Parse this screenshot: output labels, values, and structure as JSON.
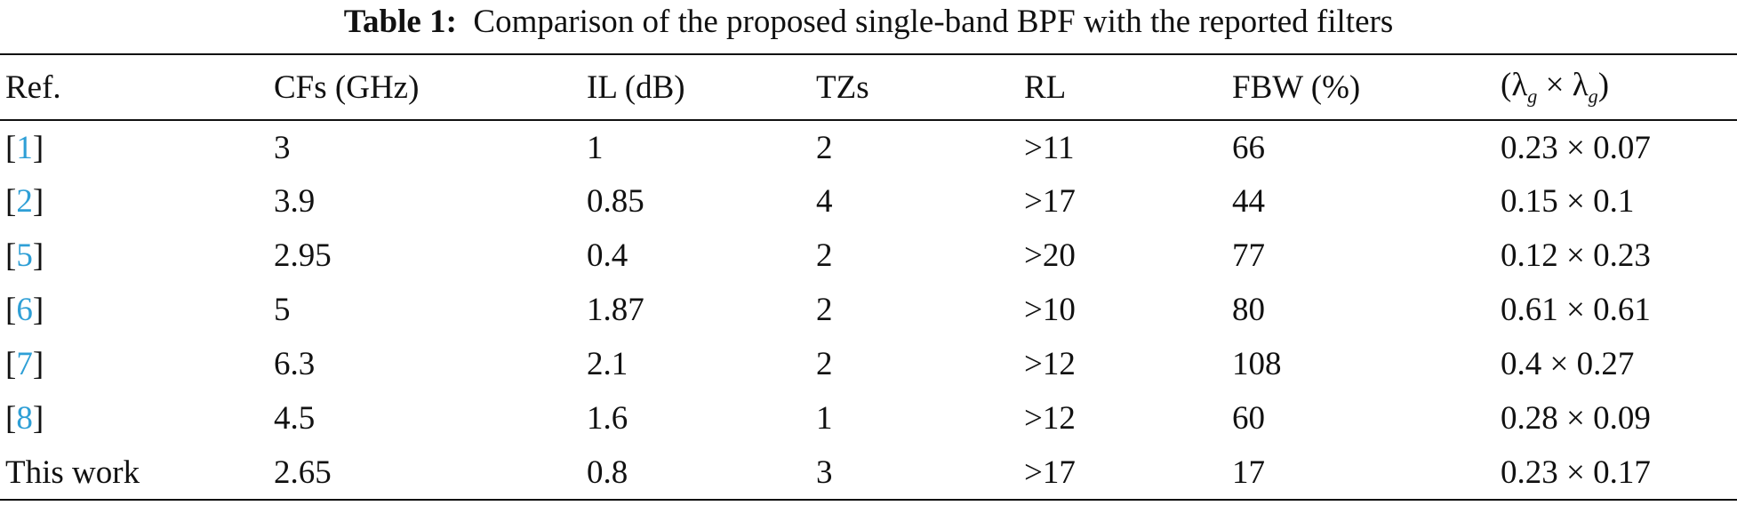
{
  "caption": {
    "label": "Table 1:",
    "text": "Comparison of the proposed single-band BPF with the reported filters"
  },
  "table": {
    "header": [
      "Ref.",
      "CFs (GHz)",
      "IL (dB)",
      "TZs",
      "RL",
      "FBW (%)",
      "(λg × λg)"
    ],
    "rows": [
      [
        "[1]",
        "3",
        "1",
        "2",
        ">11",
        "66",
        "0.23 × 0.07"
      ],
      [
        "[2]",
        "3.9",
        "0.85",
        "4",
        ">17",
        "44",
        "0.15 × 0.1"
      ],
      [
        "[5]",
        "2.95",
        "0.4",
        "2",
        ">20",
        "77",
        "0.12 × 0.23"
      ],
      [
        "[6]",
        "5",
        "1.87",
        "2",
        ">10",
        "80",
        "0.61 × 0.61"
      ],
      [
        "[7]",
        "6.3",
        "2.1",
        "2",
        ">12",
        "108",
        "0.4 × 0.27"
      ],
      [
        "[8]",
        "4.5",
        "1.6",
        "1",
        ">12",
        "60",
        "0.28 × 0.09"
      ],
      [
        "This work",
        "2.65",
        "0.8",
        "3",
        ">17",
        "17",
        "0.23 × 0.17"
      ]
    ]
  }
}
